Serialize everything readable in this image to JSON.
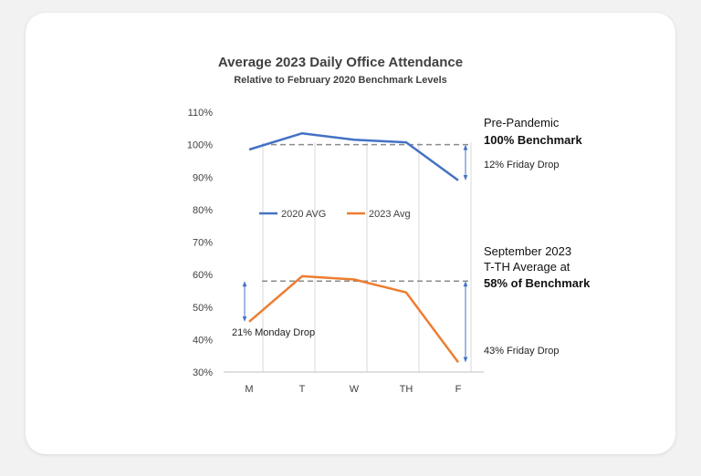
{
  "chart_data": {
    "type": "line",
    "title": "Average 2023 Daily Office Attendance",
    "subtitle": "Relative to February 2020 Benchmark Levels",
    "categories": [
      "M",
      "T",
      "W",
      "TH",
      "F"
    ],
    "ylim": [
      30,
      110
    ],
    "yticks": [
      "30%",
      "40%",
      "50%",
      "60%",
      "70%",
      "80%",
      "90%",
      "100%",
      "110%"
    ],
    "grid": "vertical",
    "series": [
      {
        "name": "2020 AVG",
        "color": "#4472c4",
        "values": [
          98.5,
          103.5,
          101.5,
          100.7,
          89
        ]
      },
      {
        "name": "2023 Avg",
        "color": "#ed7d31",
        "values": [
          45.5,
          59.5,
          58.5,
          54.5,
          33
        ]
      }
    ],
    "reference_lines": [
      {
        "value": 100,
        "style": "dashed"
      },
      {
        "value": 58,
        "style": "dashed"
      }
    ],
    "annotations": {
      "pre_pandemic_line1": "Pre-Pandemic",
      "pre_pandemic_line2": "100% Benchmark",
      "friday_drop_2020": "12% Friday Drop",
      "sept_line1": "September 2023",
      "sept_line2": "T-TH Average at",
      "sept_line3": "58% of Benchmark",
      "monday_drop": "21% Monday Drop",
      "friday_drop_2023": "43% Friday Drop"
    },
    "legend_placement": "inside-center"
  }
}
